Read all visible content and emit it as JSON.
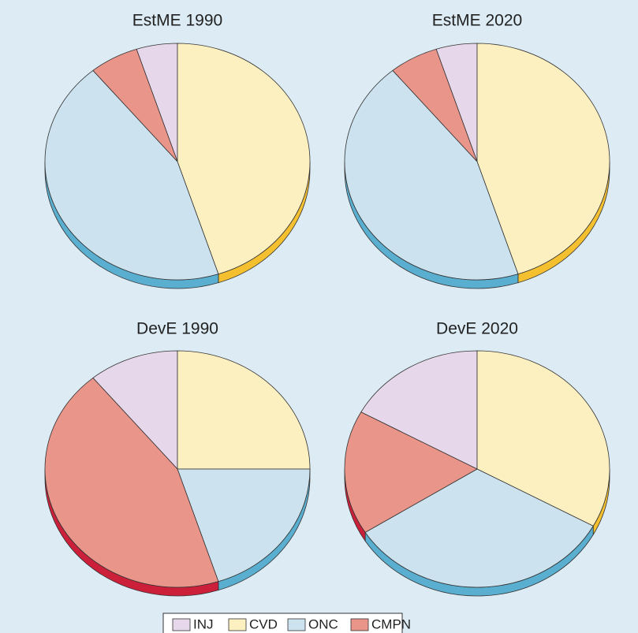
{
  "chart_data": [
    {
      "type": "pie",
      "title": "EstME 1990",
      "categories": [
        "INJ",
        "CVD",
        "ONC",
        "CMPN"
      ],
      "values": [
        5,
        45,
        44,
        6
      ],
      "colors": [
        "#e6d8ea",
        "#fdf0c0",
        "#cce3ef",
        "#ea958a"
      ],
      "edge_colors": [
        "#b9a3c2",
        "#f5c030",
        "#5aafd0",
        "#cc1f3a"
      ]
    },
    {
      "type": "pie",
      "title": "EstME 2020",
      "categories": [
        "INJ",
        "CVD",
        "ONC",
        "CMPN"
      ],
      "values": [
        5,
        45,
        44,
        6
      ],
      "colors": [
        "#e6d8ea",
        "#fdf0c0",
        "#cce3ef",
        "#ea958a"
      ],
      "edge_colors": [
        "#b9a3c2",
        "#f5c030",
        "#5aafd0",
        "#cc1f3a"
      ]
    },
    {
      "type": "pie",
      "title": "DevE 1990",
      "categories": [
        "INJ",
        "CVD",
        "ONC",
        "CMPN"
      ],
      "values": [
        11,
        25,
        20,
        44
      ],
      "colors": [
        "#e6d8ea",
        "#fdf0c0",
        "#cce3ef",
        "#ea958a"
      ],
      "edge_colors": [
        "#b9a3c2",
        "#f5c030",
        "#5aafd0",
        "#cc1f3a"
      ]
    },
    {
      "type": "pie",
      "title": "DevE 2020",
      "categories": [
        "INJ",
        "CVD",
        "ONC",
        "CMPN"
      ],
      "values": [
        17,
        33,
        33,
        17
      ],
      "colors": [
        "#e6d8ea",
        "#fdf0c0",
        "#cce3ef",
        "#ea958a"
      ],
      "edge_colors": [
        "#b9a3c2",
        "#f5c030",
        "#5aafd0",
        "#cc1f3a"
      ]
    }
  ]
}
